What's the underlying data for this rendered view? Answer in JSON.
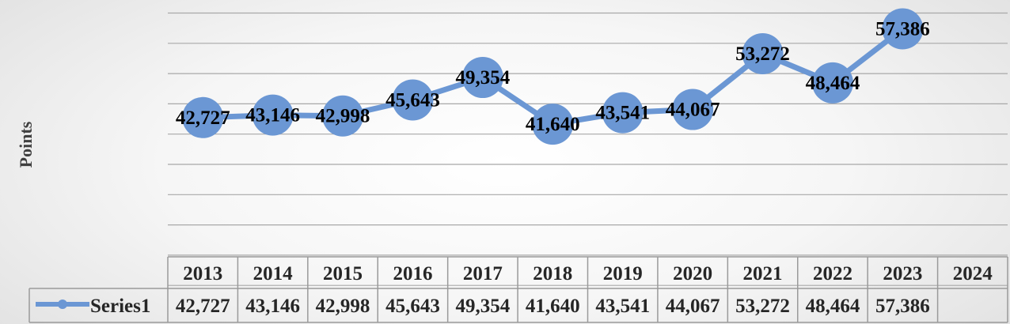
{
  "chart_data": {
    "type": "line",
    "ylabel": "Points",
    "ylim": [
      10000,
      60000
    ],
    "y_gridline_step": 5000,
    "grid": true,
    "legend": "data-table",
    "categories": [
      "2013",
      "2014",
      "2015",
      "2016",
      "2017",
      "2018",
      "2019",
      "2020",
      "2021",
      "2022",
      "2023",
      "2024"
    ],
    "series": [
      {
        "name": "Series1",
        "color": "#6b97d4",
        "values": [
          42727,
          43146,
          42998,
          45643,
          49354,
          41640,
          43541,
          44067,
          53272,
          48464,
          57386,
          null
        ],
        "data_labels": [
          "42,727",
          "43,146",
          "42,998",
          "45,643",
          "49,354",
          "41,640",
          "43,541",
          "44,067",
          "53,272",
          "48,464",
          "57,386",
          ""
        ]
      }
    ]
  }
}
